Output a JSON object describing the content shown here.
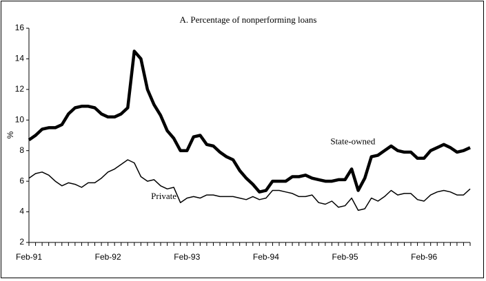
{
  "chart_data": {
    "type": "line",
    "title": "A. Percentage of nonperforming loans",
    "y_label": "%",
    "categories": [
      "Feb-91",
      null,
      null,
      null,
      null,
      null,
      null,
      null,
      null,
      null,
      null,
      null,
      "Feb-92",
      null,
      null,
      null,
      null,
      null,
      null,
      null,
      null,
      null,
      null,
      null,
      "Feb-93",
      null,
      null,
      null,
      null,
      null,
      null,
      null,
      null,
      null,
      null,
      null,
      "Feb-94",
      null,
      null,
      null,
      null,
      null,
      null,
      null,
      null,
      null,
      null,
      null,
      "Feb-95",
      null,
      null,
      null,
      null,
      null,
      null,
      null,
      null,
      null,
      null,
      null,
      "Feb-96",
      null,
      null,
      null,
      null,
      null,
      null,
      null
    ],
    "series": [
      {
        "name": "State-owned",
        "color": "#000000",
        "values": [
          8.7,
          9.0,
          9.4,
          9.5,
          9.5,
          9.7,
          10.4,
          10.8,
          10.9,
          10.9,
          10.8,
          10.4,
          10.2,
          10.2,
          10.4,
          10.8,
          14.5,
          14.0,
          12.0,
          11.0,
          10.3,
          9.3,
          8.8,
          8.0,
          8.0,
          8.9,
          9.0,
          8.4,
          8.3,
          7.9,
          7.6,
          7.4,
          6.7,
          6.2,
          5.8,
          5.3,
          5.4,
          6.0,
          6.0,
          6.0,
          6.3,
          6.3,
          6.4,
          6.2,
          6.1,
          6.0,
          6.0,
          6.1,
          6.1,
          6.8,
          5.4,
          6.2,
          7.6,
          7.7,
          8.0,
          8.3,
          8.0,
          7.9,
          7.9,
          7.5,
          7.5,
          8.0,
          8.2,
          8.4,
          8.2,
          7.9,
          8.0,
          8.2
        ]
      },
      {
        "name": "Private",
        "color": "#000000",
        "values": [
          6.2,
          6.5,
          6.6,
          6.4,
          6.0,
          5.7,
          5.9,
          5.8,
          5.6,
          5.9,
          5.9,
          6.2,
          6.6,
          6.8,
          7.1,
          7.4,
          7.2,
          6.3,
          6.0,
          6.1,
          5.7,
          5.5,
          5.6,
          4.6,
          4.9,
          5.0,
          4.9,
          5.1,
          5.1,
          5.0,
          5.0,
          5.0,
          4.9,
          4.8,
          5.0,
          4.8,
          4.9,
          5.4,
          5.4,
          5.3,
          5.2,
          5.0,
          5.0,
          5.1,
          4.6,
          4.5,
          4.7,
          4.3,
          4.4,
          4.9,
          4.1,
          4.2,
          4.9,
          4.7,
          5.0,
          5.4,
          5.1,
          5.2,
          5.2,
          4.8,
          4.7,
          5.1,
          5.3,
          5.4,
          5.3,
          5.1,
          5.1,
          5.5
        ]
      }
    ],
    "ylim": [
      2,
      16
    ],
    "yticks": [
      2,
      4,
      6,
      8,
      10,
      12,
      14,
      16
    ],
    "grid": false
  }
}
